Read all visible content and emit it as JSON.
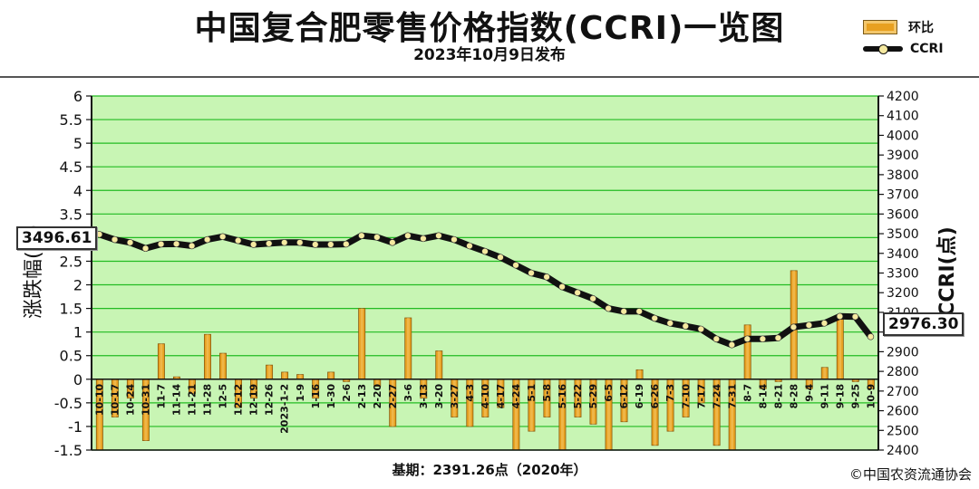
{
  "title": "中国复合肥零售价格指数(CCRI)一览图",
  "subtitle": "2023年10月9日发布",
  "baseline_note": "基期：2391.26点（2020年）",
  "copyright": "©中国农资流通协会",
  "legend": {
    "bar_label": "环比",
    "line_label": "CCRI"
  },
  "callouts": {
    "start_value": "3496.61",
    "end_value": "2976.30"
  },
  "colors": {
    "plot_bg": "#c8f5b4",
    "grid": "#22bb22",
    "bar": "#e8a020",
    "line": "#111111",
    "marker": "#f5e9a0"
  },
  "chart_data": {
    "type": "bar+line",
    "categories": [
      "10-10",
      "10-17",
      "10-24",
      "10-31",
      "11-7",
      "11-14",
      "11-21",
      "11-28",
      "12-5",
      "12-12",
      "12-19",
      "12-26",
      "2023-1-2",
      "1-9",
      "1-16",
      "1-30",
      "2-6",
      "2-13",
      "2-20",
      "2-27",
      "3-6",
      "3-13",
      "3-20",
      "3-27",
      "4-3",
      "4-10",
      "4-17",
      "4-24",
      "5-1",
      "5-8",
      "5-16",
      "5-22",
      "5-29",
      "6-5",
      "6-12",
      "6-19",
      "6-26",
      "7-3",
      "7-10",
      "7-17",
      "7-24",
      "7-31",
      "8-7",
      "8-14",
      "8-21",
      "8-28",
      "9-4",
      "9-11",
      "9-18",
      "9-25",
      "10-9"
    ],
    "series": [
      {
        "name": "环比",
        "axis": "left",
        "values": [
          -1.5,
          -0.8,
          -0.4,
          -1.3,
          0.75,
          0.05,
          -0.3,
          0.95,
          0.55,
          -0.6,
          -0.4,
          0.3,
          0.15,
          0.1,
          -0.4,
          0.15,
          -0.05,
          1.5,
          -0.15,
          -1.0,
          1.3,
          -0.4,
          0.6,
          -0.8,
          -1.0,
          -0.8,
          -0.6,
          -1.5,
          -1.1,
          -0.8,
          -1.5,
          -0.8,
          -0.95,
          -1.5,
          -0.9,
          0.2,
          -1.4,
          -1.1,
          -0.8,
          -0.5,
          -1.4,
          -1.5,
          1.15,
          -0.2,
          -0.05,
          2.3,
          -0.2,
          0.25,
          1.3,
          -0.05,
          -0.2
        ]
      },
      {
        "name": "CCRI",
        "axis": "right",
        "values": [
          3496.61,
          3470,
          3455,
          3425,
          3447,
          3448,
          3438,
          3470,
          3485,
          3465,
          3445,
          3450,
          3455,
          3455,
          3445,
          3445,
          3447,
          3490,
          3482,
          3455,
          3490,
          3475,
          3490,
          3470,
          3438,
          3410,
          3380,
          3340,
          3300,
          3280,
          3230,
          3200,
          3170,
          3120,
          3105,
          3105,
          3070,
          3045,
          3030,
          3015,
          2965,
          2935,
          2965,
          2965,
          2970,
          3025,
          3035,
          3045,
          3080,
          3078,
          2976.3
        ]
      }
    ],
    "ylabel": "涨跌幅(%)",
    "y2label": "CCRI(点)",
    "ylim": [
      -1.5,
      6
    ],
    "y2lim": [
      2400,
      4200
    ],
    "yticks": [
      "-1.5",
      "-1",
      "-0.5",
      "0",
      "0.5",
      "1",
      "1.5",
      "2",
      "2.5",
      "3",
      "3.5",
      "4",
      "4.5",
      "5",
      "5.5",
      "6"
    ],
    "y2ticks": [
      "2400",
      "2500",
      "2600",
      "2700",
      "2800",
      "2900",
      "3000",
      "3100",
      "3200",
      "3300",
      "3400",
      "3500",
      "3600",
      "3700",
      "3800",
      "3900",
      "4000",
      "4100",
      "4200"
    ],
    "grid": true,
    "legend_position": "top-right"
  }
}
